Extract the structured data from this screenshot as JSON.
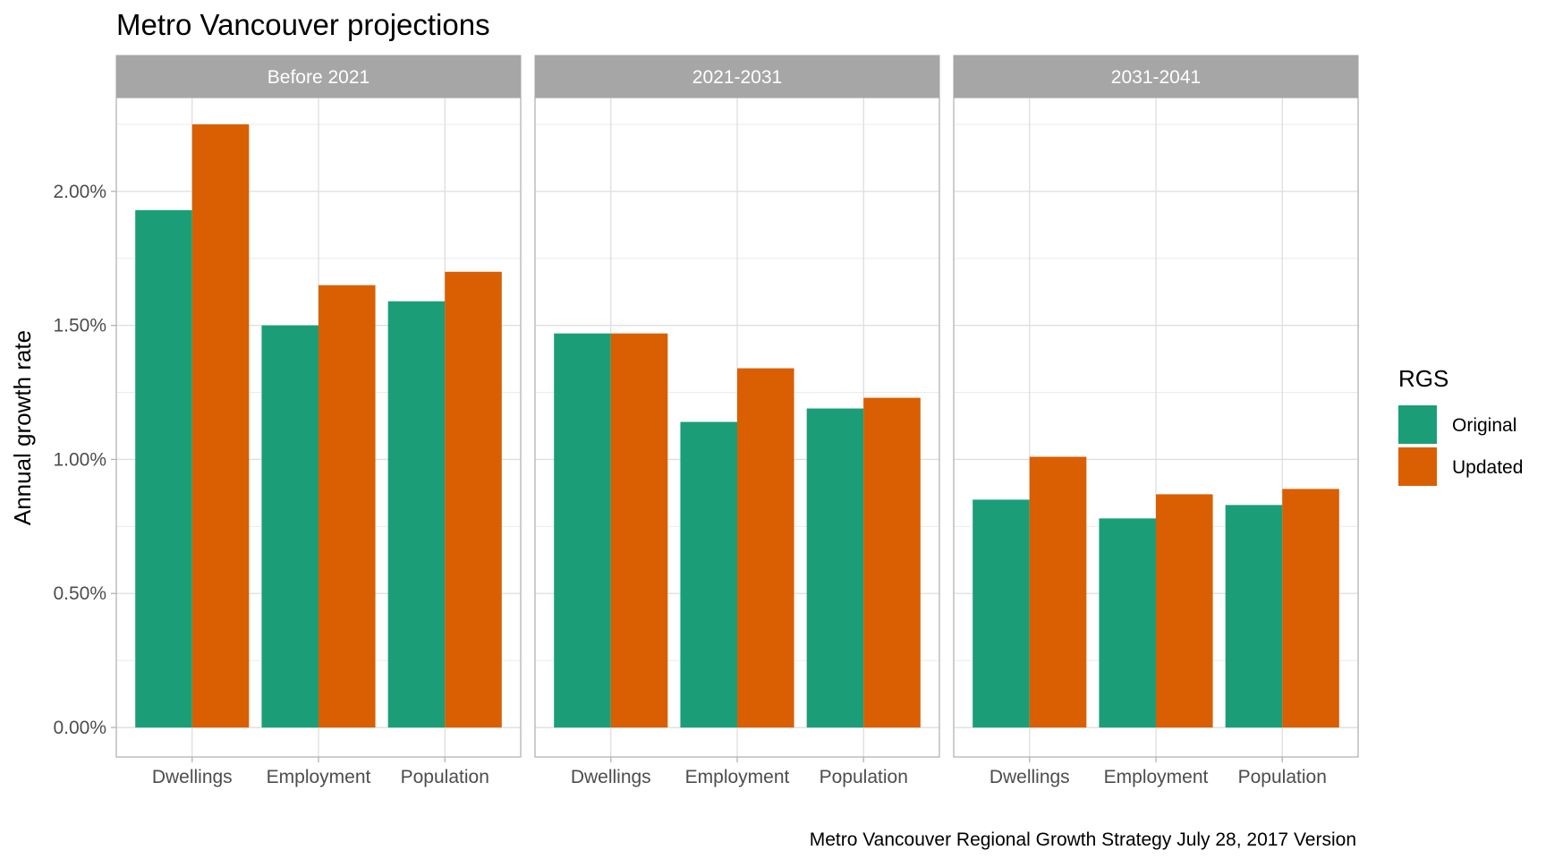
{
  "chart_data": {
    "type": "bar",
    "title": "Metro Vancouver projections",
    "caption": "Metro Vancouver Regional Growth Strategy July 28, 2017 Version",
    "xlabel": "",
    "ylabel": "Annual growth rate",
    "ylim": [
      -0.0011,
      0.0235
    ],
    "yticks": [
      0,
      0.005,
      0.01,
      0.015,
      0.02
    ],
    "ytick_labels": [
      "0.00%",
      "0.50%",
      "1.00%",
      "1.50%",
      "2.00%"
    ],
    "categories": [
      "Dwellings",
      "Employment",
      "Population"
    ],
    "legend": {
      "title": "RGS",
      "position": "right",
      "entries": [
        {
          "name": "Original",
          "color": "#1b9e77"
        },
        {
          "name": "Updated",
          "color": "#d95f02"
        }
      ]
    },
    "grid": true,
    "facets": [
      {
        "label": "Before 2021",
        "series": [
          {
            "name": "Original",
            "values": [
              0.0193,
              0.015,
              0.0159
            ]
          },
          {
            "name": "Updated",
            "values": [
              0.0225,
              0.0165,
              0.017
            ]
          }
        ]
      },
      {
        "label": "2021-2031",
        "series": [
          {
            "name": "Original",
            "values": [
              0.0147,
              0.0114,
              0.0119
            ]
          },
          {
            "name": "Updated",
            "values": [
              0.0147,
              0.0134,
              0.0123
            ]
          }
        ]
      },
      {
        "label": "2031-2041",
        "series": [
          {
            "name": "Original",
            "values": [
              0.0085,
              0.0078,
              0.0083
            ]
          },
          {
            "name": "Updated",
            "values": [
              0.0101,
              0.0087,
              0.0089
            ]
          }
        ]
      }
    ]
  }
}
